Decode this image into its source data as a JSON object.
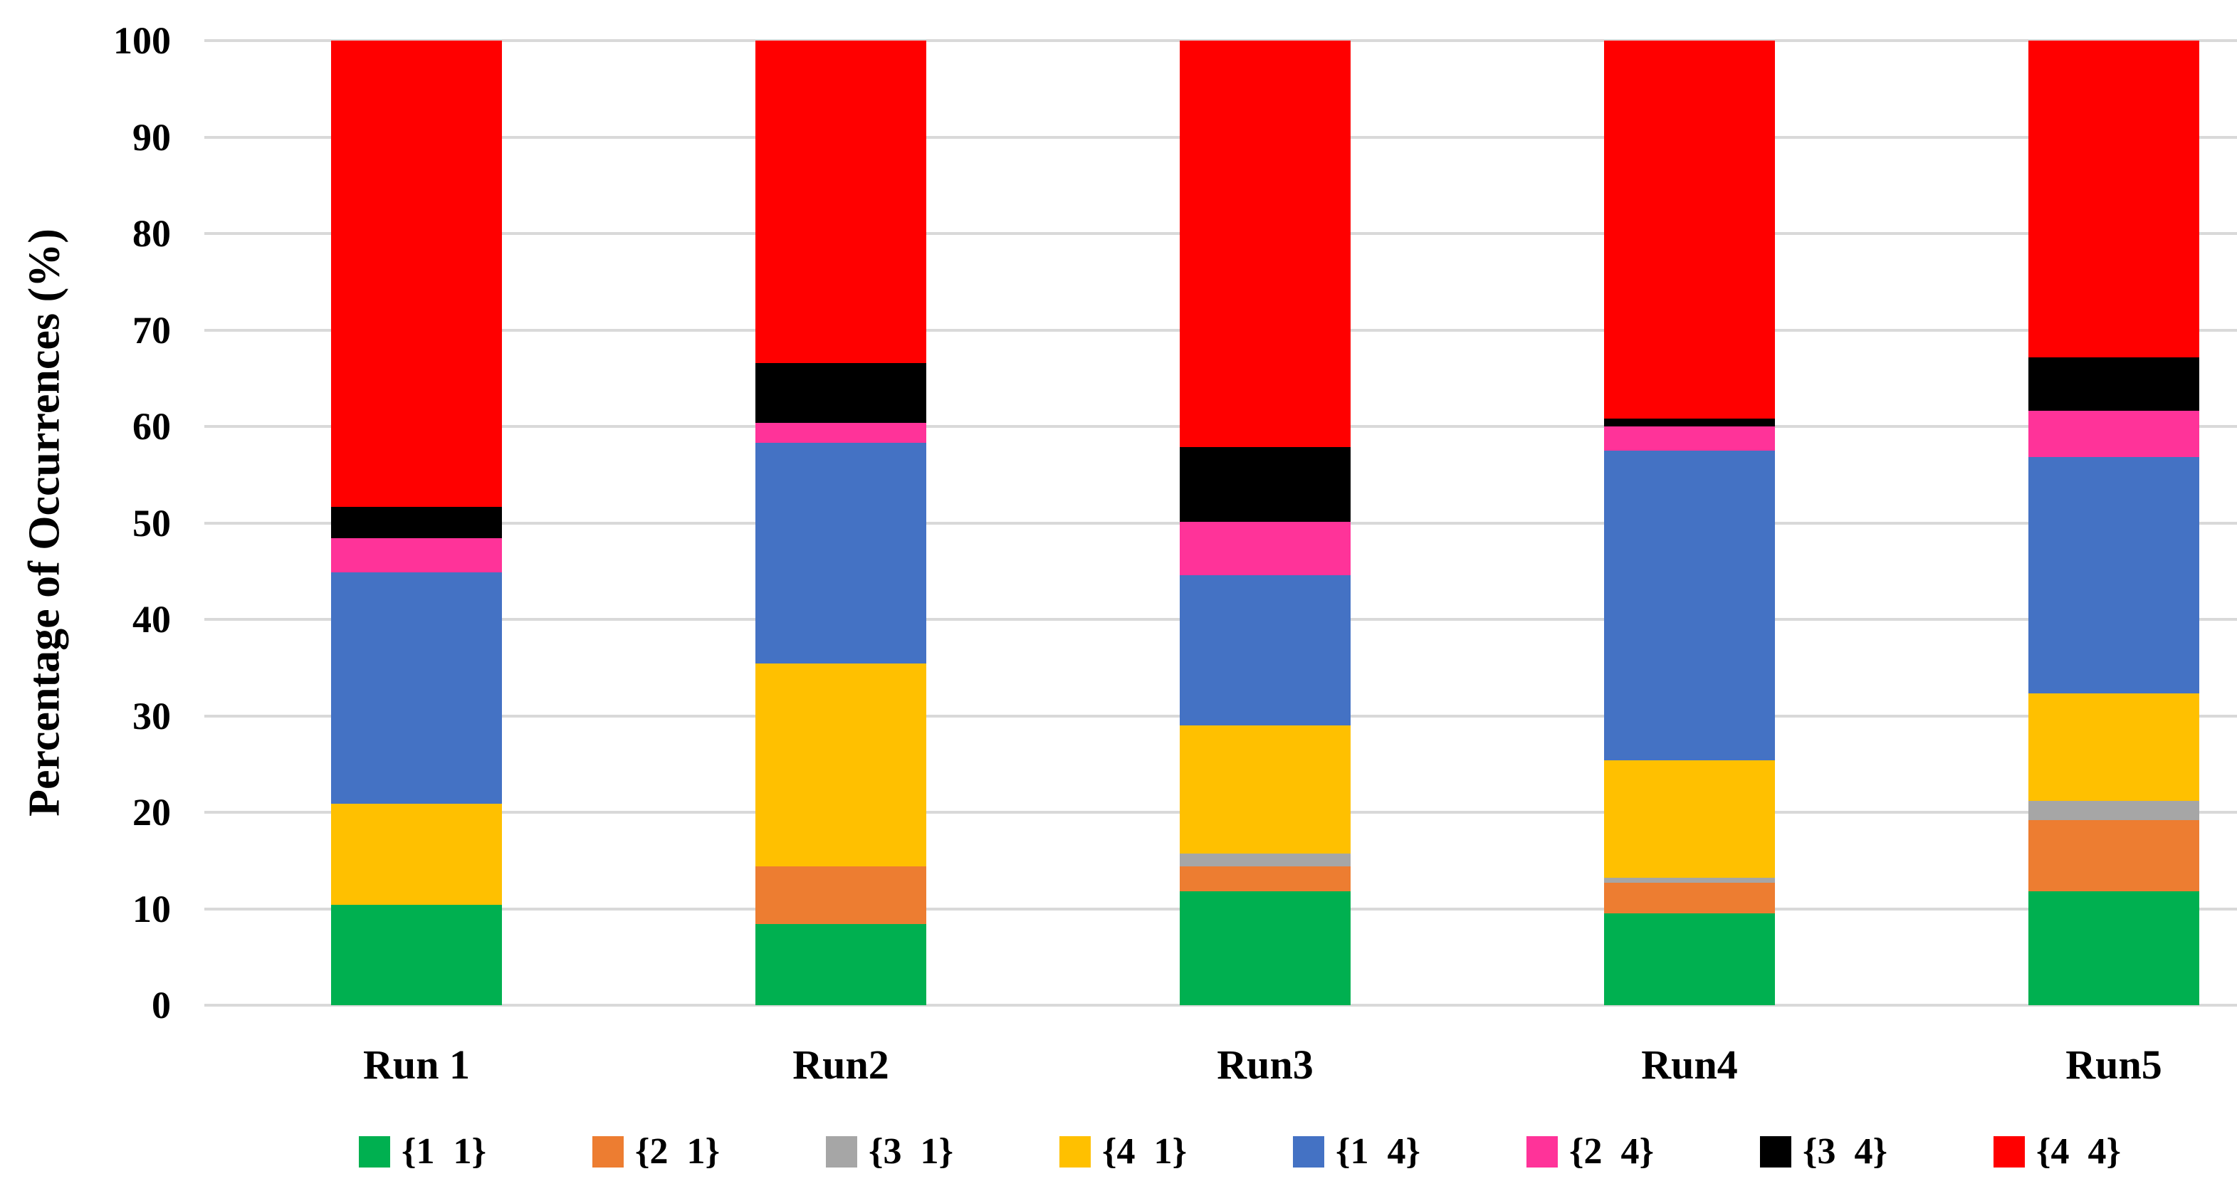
{
  "chart_data": {
    "type": "bar",
    "stacked": true,
    "ylabel": "Percentage of Occurrences (%)",
    "xlabel": "",
    "title": "",
    "ylim": [
      0,
      100
    ],
    "ytick_step": 10,
    "ytick_labels": [
      "0",
      "10",
      "20",
      "30",
      "40",
      "50",
      "60",
      "70",
      "80",
      "90",
      "100"
    ],
    "grid": true,
    "legend_position": "bottom",
    "categories": [
      "Run 1",
      "Run2",
      "Run3",
      "Run4",
      "Run5"
    ],
    "series": [
      {
        "name": "{1  1}",
        "color": "#00B050",
        "values": [
          10.4,
          8.4,
          11.8,
          9.5,
          11.8
        ]
      },
      {
        "name": "{2  1}",
        "color": "#ED7D31",
        "values": [
          0,
          6.0,
          2.6,
          3.2,
          7.4
        ]
      },
      {
        "name": "{3  1}",
        "color": "#A6A6A6",
        "values": [
          0,
          0,
          1.3,
          0.5,
          2.0
        ]
      },
      {
        "name": "{4  1}",
        "color": "#FFC000",
        "values": [
          10.5,
          21.0,
          13.3,
          12.2,
          11.1
        ]
      },
      {
        "name": "{1  4}",
        "color": "#4472C4",
        "values": [
          24.0,
          22.9,
          15.6,
          32.1,
          24.5
        ]
      },
      {
        "name": "{2  4}",
        "color": "#FF3399",
        "values": [
          3.5,
          2.1,
          5.5,
          2.5,
          4.8
        ]
      },
      {
        "name": "{3  4}",
        "color": "#000000",
        "values": [
          3.3,
          6.2,
          7.8,
          0.8,
          5.6
        ]
      },
      {
        "name": "{4  4}",
        "color": "#FF0000",
        "values": [
          48.3,
          33.4,
          42.1,
          39.2,
          32.8
        ]
      }
    ]
  },
  "style": {
    "gridline_color": "#d9d9d9",
    "background_color": "#ffffff",
    "text_color": "#000000"
  }
}
